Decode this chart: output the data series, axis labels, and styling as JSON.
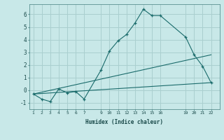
{
  "title": "",
  "xlabel": "Humidex (Indice chaleur)",
  "ylabel": "",
  "bg_color": "#c8e8e8",
  "grid_color": "#aacfcf",
  "line_color": "#1a6b6b",
  "ylim": [
    -1.5,
    6.8
  ],
  "xlim": [
    0.5,
    23.0
  ],
  "xticks": [
    1,
    2,
    3,
    4,
    5,
    6,
    7,
    9,
    10,
    11,
    12,
    13,
    14,
    15,
    16,
    19,
    20,
    21,
    22
  ],
  "yticks": [
    -1,
    0,
    1,
    2,
    3,
    4,
    5,
    6
  ],
  "line1": {
    "x": [
      1,
      2,
      3,
      4,
      5,
      6,
      7,
      9,
      10,
      11,
      12,
      13,
      14,
      15,
      16,
      19,
      20,
      21,
      22
    ],
    "y": [
      -0.3,
      -0.7,
      -0.9,
      0.1,
      -0.2,
      -0.1,
      -0.7,
      1.6,
      3.1,
      3.9,
      4.4,
      5.3,
      6.4,
      5.9,
      5.9,
      4.2,
      2.8,
      1.9,
      0.6
    ]
  },
  "line2": {
    "x": [
      1,
      22
    ],
    "y": [
      -0.3,
      0.6
    ]
  },
  "line3": {
    "x": [
      1,
      22
    ],
    "y": [
      -0.3,
      2.8
    ]
  }
}
